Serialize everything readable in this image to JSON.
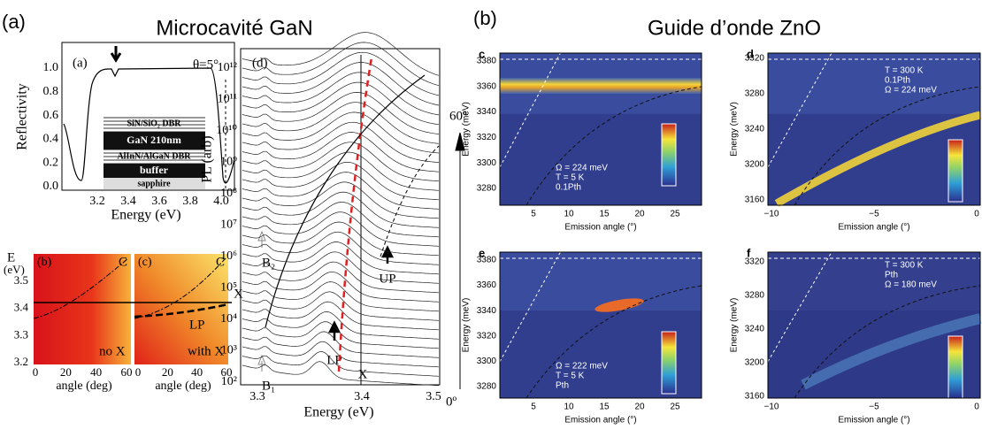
{
  "left": {
    "label": "(a)",
    "title": "Microcavité GaN",
    "panel_a": {
      "label": "(a)",
      "angle": "θ=5°",
      "ylabel": "Reflectivity",
      "xlabel": "Energy (eV)",
      "yticks": [
        "0.0",
        "0.2",
        "0.4",
        "0.6",
        "0.8",
        "1.0"
      ],
      "xticks": [
        "3.2",
        "3.4",
        "3.6",
        "3.8",
        "4.0"
      ],
      "layers": [
        "SiN/SiO₂ DBR",
        "GaN 210nm",
        "AlInN/AlGaN DBR",
        "buffer",
        "sapphire"
      ]
    },
    "panel_bc": {
      "ylabel": "E",
      "yunit": "(eV)",
      "yticks": [
        "3.5",
        "3.4",
        "3.3",
        "3.2"
      ],
      "b": {
        "label": "(b)",
        "cavity": "C",
        "note": "no X",
        "xticks": [
          "0",
          "20",
          "40",
          "60"
        ],
        "xlabel": "angle (deg)"
      },
      "c": {
        "label": "(c)",
        "cavity": "C",
        "exciton": "X",
        "polariton": "LP",
        "note": "with X",
        "xticks": [
          "0",
          "20",
          "40",
          "60"
        ],
        "xlabel": "angle (deg)"
      }
    },
    "panel_d": {
      "label": "(d)",
      "ylabel": "PL (arb)",
      "yticks": [
        "10¹²",
        "10¹¹",
        "10¹⁰",
        "10⁹",
        "10⁸",
        "10⁷",
        "10⁶",
        "10⁵",
        "10⁴",
        "10³",
        "10²"
      ],
      "xticks": [
        "3.3",
        "3.4",
        "3.5"
      ],
      "xlabel": "Energy (eV)",
      "b2": "B₂",
      "b1": "B₁",
      "lp": "LP",
      "x": "X",
      "up": "UP",
      "top_angle": "60º",
      "bottom_angle": "0º"
    }
  },
  "right": {
    "label": "(b)",
    "title": "Guide d’onde ZnO",
    "panels": [
      {
        "label": "c",
        "ylabel": "Energy (meV)",
        "xlabel": "Emission angle (°)",
        "yticks": [
          "3380",
          "3360",
          "3340",
          "3320",
          "3300",
          "3280"
        ],
        "xticks": [
          "5",
          "10",
          "15",
          "20",
          "25"
        ],
        "notes": [
          "Ω = 224 meV",
          "T = 5 K",
          "0.1Pth"
        ]
      },
      {
        "label": "d",
        "ylabel": "Energy (meV)",
        "xlabel": "Emission angle (°)",
        "yticks": [
          "3320",
          "3280",
          "3240",
          "3200",
          "3160"
        ],
        "xticks": [
          "−10",
          "−5",
          "0"
        ],
        "notes": [
          "T = 300 K",
          "0.1Pth",
          "Ω = 224 meV"
        ]
      },
      {
        "label": "e",
        "ylabel": "Energy (meV)",
        "xlabel": "Emission angle (°)",
        "yticks": [
          "3380",
          "3360",
          "3340",
          "3320",
          "3300",
          "3280"
        ],
        "xticks": [
          "5",
          "10",
          "15",
          "20",
          "25"
        ],
        "notes": [
          "Ω = 222 meV",
          "T = 5 K",
          "Pth"
        ]
      },
      {
        "label": "f",
        "ylabel": "Energy (meV)",
        "xlabel": "Emission angle (°)",
        "yticks": [
          "3320",
          "3280",
          "3240",
          "3200",
          "3160"
        ],
        "xticks": [
          "−10",
          "−5",
          "0"
        ],
        "notes": [
          "T = 300 K",
          "Pth",
          "Ω = 180 meV"
        ]
      }
    ]
  }
}
